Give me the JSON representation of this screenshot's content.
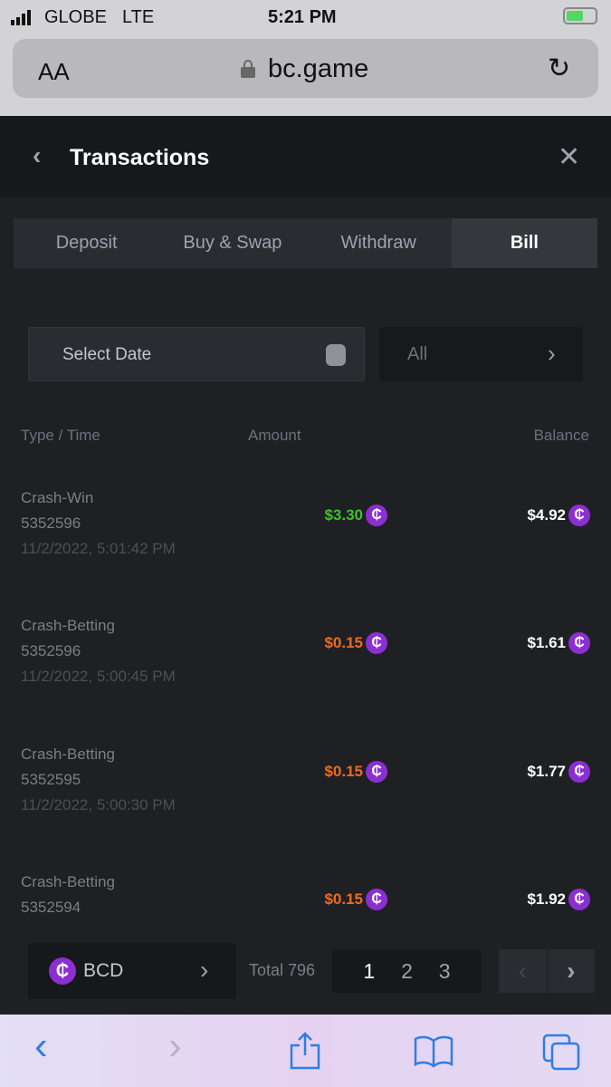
{
  "status_bar": {
    "carrier": "GLOBE",
    "network": "LTE",
    "time": "5:21 PM"
  },
  "browser": {
    "text_size_label": "AA",
    "url": "bc.game"
  },
  "header": {
    "title": "Transactions"
  },
  "tabs": [
    {
      "label": "Deposit"
    },
    {
      "label": "Buy & Swap"
    },
    {
      "label": "Withdraw"
    },
    {
      "label": "Bill",
      "active": true
    }
  ],
  "filters": {
    "date_placeholder": "Select Date",
    "type_value": "All"
  },
  "table": {
    "columns": [
      "Type / Time",
      "Amount",
      "Balance"
    ],
    "rows": [
      {
        "type": "Crash-Win",
        "id": "5352596",
        "time": "11/2/2022, 5:01:42 PM",
        "amount": "$3.30",
        "balance": "$4.92"
      },
      {
        "type": "Crash-Betting",
        "id": "5352596",
        "time": "11/2/2022, 5:00:45 PM",
        "amount": "$0.15",
        "balance": "$1.61"
      },
      {
        "type": "Crash-Betting",
        "id": "5352595",
        "time": "11/2/2022, 5:00:30 PM",
        "amount": "$0.15",
        "balance": "$1.77"
      },
      {
        "type": "Crash-Betting",
        "id": "5352594",
        "time": "",
        "amount": "$0.15",
        "balance": "$1.92"
      }
    ]
  },
  "footer": {
    "currency": "BCD",
    "coin_symbol": "₵",
    "total": "Total 796",
    "pages": [
      "1",
      "2",
      "3"
    ],
    "current_page": "1"
  },
  "colors": {
    "win": "#3fc22a",
    "bet": "#f26a1a",
    "coin": "#8b2fd1",
    "accent_blue": "#2f7ee3"
  }
}
